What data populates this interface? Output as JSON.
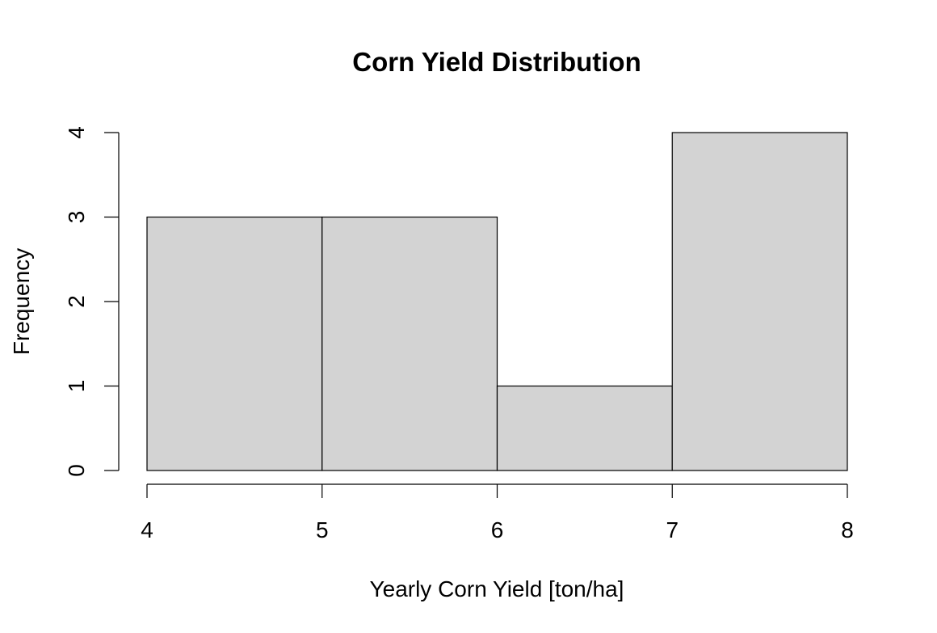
{
  "chart_data": {
    "type": "bar",
    "title": "Corn Yield Distribution",
    "xlabel": "Yearly Corn Yield [ton/ha]",
    "ylabel": "Frequency",
    "bins": [
      {
        "start": 4,
        "end": 5,
        "count": 3
      },
      {
        "start": 5,
        "end": 6,
        "count": 3
      },
      {
        "start": 6,
        "end": 7,
        "count": 1
      },
      {
        "start": 7,
        "end": 8,
        "count": 4
      }
    ],
    "xlim": [
      4,
      8
    ],
    "ylim": [
      0,
      4
    ],
    "x_ticks": [
      "4",
      "5",
      "6",
      "7",
      "8"
    ],
    "y_ticks": [
      "0",
      "1",
      "2",
      "3",
      "4"
    ],
    "bar_color": "#d3d3d3",
    "grid": false
  }
}
